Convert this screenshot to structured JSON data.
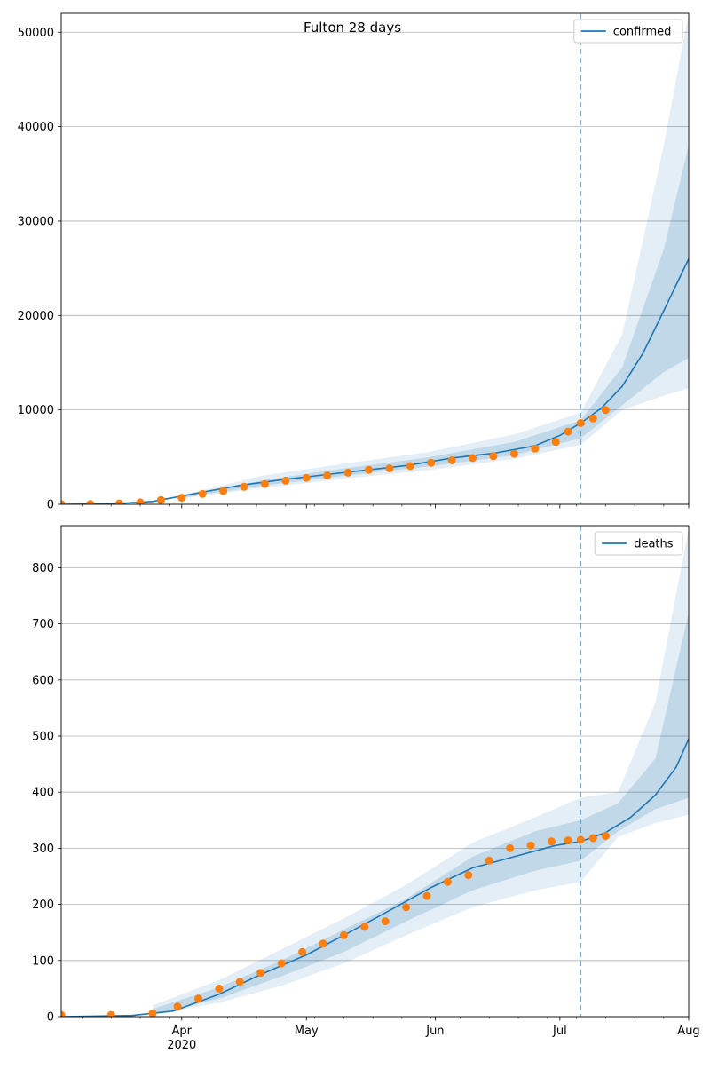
{
  "chart_data": [
    {
      "type": "line",
      "title": "Fulton 28 days",
      "xlabel": "",
      "ylabel": "",
      "x_axis": "date",
      "xlim": [
        "2020-03-03",
        "2020-08-01"
      ],
      "ylim": [
        0,
        52000
      ],
      "yticks": [
        0,
        10000,
        20000,
        30000,
        40000,
        50000
      ],
      "xtick_labels": [
        "Apr",
        "May",
        "Jun",
        "Jul",
        "Aug"
      ],
      "xtick_sublabel": "2020",
      "grid": "horizontal",
      "legend": {
        "position": "top-right",
        "entries": [
          "confirmed"
        ]
      },
      "forecast_start": "2020-07-06",
      "colors": {
        "fit": "#1f77b4",
        "observed": "#ff7f0e",
        "band": "#1f77b4"
      },
      "series": [
        {
          "name": "confirmed",
          "kind": "fit-line",
          "x": [
            "2020-03-03",
            "2020-03-15",
            "2020-03-25",
            "2020-04-05",
            "2020-04-15",
            "2020-04-25",
            "2020-05-05",
            "2020-05-15",
            "2020-05-25",
            "2020-06-05",
            "2020-06-15",
            "2020-06-25",
            "2020-07-01",
            "2020-07-06",
            "2020-07-11",
            "2020-07-16",
            "2020-07-21",
            "2020-07-26",
            "2020-08-01"
          ],
          "values": [
            0,
            50,
            300,
            1200,
            2000,
            2600,
            3100,
            3600,
            4100,
            4900,
            5400,
            6200,
            7300,
            8600,
            10200,
            12500,
            16000,
            20500,
            26000
          ]
        },
        {
          "name": "",
          "kind": "observed-points",
          "x": [
            "2020-03-03",
            "2020-03-10",
            "2020-03-17",
            "2020-03-22",
            "2020-03-27",
            "2020-04-01",
            "2020-04-06",
            "2020-04-11",
            "2020-04-16",
            "2020-04-21",
            "2020-04-26",
            "2020-05-01",
            "2020-05-06",
            "2020-05-11",
            "2020-05-16",
            "2020-05-21",
            "2020-05-26",
            "2020-05-31",
            "2020-06-05",
            "2020-06-10",
            "2020-06-15",
            "2020-06-20",
            "2020-06-25",
            "2020-06-30",
            "2020-07-03",
            "2020-07-06",
            "2020-07-09",
            "2020-07-12"
          ],
          "values": [
            20,
            30,
            80,
            200,
            450,
            700,
            1100,
            1400,
            1850,
            2150,
            2500,
            2800,
            3050,
            3350,
            3650,
            3800,
            4050,
            4400,
            4650,
            4900,
            5100,
            5350,
            5900,
            6600,
            7700,
            8600,
            9100,
            10000
          ]
        }
      ],
      "bands": {
        "x": [
          "2020-04-01",
          "2020-04-20",
          "2020-05-10",
          "2020-05-30",
          "2020-06-20",
          "2020-07-06",
          "2020-07-16",
          "2020-07-26",
          "2020-08-01"
        ],
        "outer_low": [
          600,
          1700,
          2700,
          3600,
          4800,
          6300,
          10000,
          11500,
          12300
        ],
        "outer_high": [
          950,
          3000,
          4300,
          5500,
          7400,
          9700,
          18000,
          38000,
          52000
        ],
        "inner_low": [
          680,
          1950,
          3000,
          4000,
          5200,
          7000,
          10500,
          14000,
          15500
        ],
        "inner_high": [
          870,
          2500,
          3800,
          4950,
          6600,
          8900,
          14500,
          27000,
          38000
        ]
      }
    },
    {
      "type": "line",
      "title": "",
      "xlabel": "",
      "ylabel": "",
      "x_axis": "date",
      "xlim": [
        "2020-03-03",
        "2020-08-01"
      ],
      "ylim": [
        0,
        875
      ],
      "yticks": [
        0,
        100,
        200,
        300,
        400,
        500,
        600,
        700,
        800
      ],
      "xtick_labels": [
        "Apr",
        "May",
        "Jun",
        "Jul",
        "Aug"
      ],
      "xtick_sublabel": "2020",
      "grid": "horizontal",
      "legend": {
        "position": "top-right",
        "entries": [
          "deaths"
        ]
      },
      "forecast_start": "2020-07-06",
      "colors": {
        "fit": "#1f77b4",
        "observed": "#ff7f0e",
        "band": "#1f77b4"
      },
      "series": [
        {
          "name": "deaths",
          "kind": "fit-line",
          "x": [
            "2020-03-03",
            "2020-03-20",
            "2020-03-30",
            "2020-04-10",
            "2020-04-20",
            "2020-05-01",
            "2020-05-10",
            "2020-05-20",
            "2020-05-31",
            "2020-06-10",
            "2020-06-20",
            "2020-06-30",
            "2020-07-06",
            "2020-07-12",
            "2020-07-18",
            "2020-07-24",
            "2020-07-29",
            "2020-08-01"
          ],
          "values": [
            0,
            2,
            10,
            40,
            75,
            110,
            145,
            185,
            230,
            265,
            285,
            305,
            312,
            328,
            355,
            395,
            445,
            495
          ]
        },
        {
          "name": "",
          "kind": "observed-points",
          "x": [
            "2020-03-03",
            "2020-03-15",
            "2020-03-25",
            "2020-03-31",
            "2020-04-05",
            "2020-04-10",
            "2020-04-15",
            "2020-04-20",
            "2020-04-25",
            "2020-04-30",
            "2020-05-05",
            "2020-05-10",
            "2020-05-15",
            "2020-05-20",
            "2020-05-25",
            "2020-05-30",
            "2020-06-04",
            "2020-06-09",
            "2020-06-14",
            "2020-06-19",
            "2020-06-24",
            "2020-06-29",
            "2020-07-03",
            "2020-07-06",
            "2020-07-09",
            "2020-07-12"
          ],
          "values": [
            3,
            3,
            6,
            18,
            32,
            50,
            62,
            78,
            95,
            115,
            130,
            145,
            160,
            170,
            195,
            215,
            240,
            252,
            278,
            300,
            305,
            312,
            314,
            315,
            318,
            322
          ]
        }
      ],
      "bands": {
        "x": [
          "2020-03-25",
          "2020-04-10",
          "2020-04-25",
          "2020-05-10",
          "2020-05-25",
          "2020-06-10",
          "2020-06-25",
          "2020-07-06",
          "2020-07-15",
          "2020-07-24",
          "2020-08-01"
        ],
        "outer_low": [
          3,
          25,
          55,
          95,
          145,
          195,
          225,
          240,
          320,
          345,
          360
        ],
        "outer_high": [
          20,
          65,
          120,
          175,
          235,
          310,
          355,
          390,
          400,
          560,
          870
        ],
        "inner_low": [
          4,
          32,
          72,
          115,
          170,
          225,
          260,
          278,
          330,
          370,
          390
        ],
        "inner_high": [
          14,
          52,
          100,
          155,
          210,
          285,
          330,
          350,
          380,
          460,
          720
        ]
      }
    }
  ]
}
